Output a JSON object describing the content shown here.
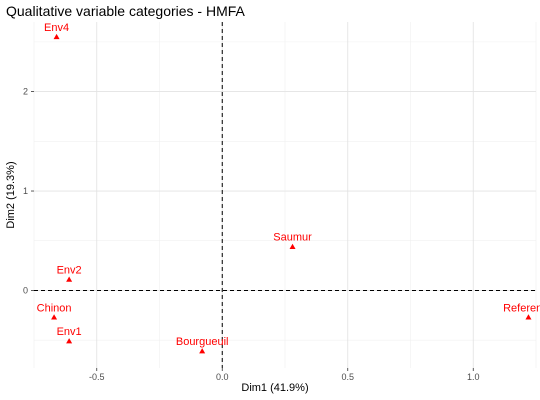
{
  "chart_data": {
    "type": "scatter",
    "title": "Qualitative variable categories - HMFA",
    "xlabel": "Dim1 (41.9%)",
    "ylabel": "Dim2 (19.3%)",
    "xlim": [
      -0.75,
      1.25
    ],
    "ylim": [
      -0.78,
      2.7
    ],
    "x_ticks": [
      -0.5,
      0.0,
      0.5,
      1.0
    ],
    "x_tick_labels": [
      "-0.5",
      "0.0",
      "0.5",
      "1.0"
    ],
    "y_ticks": [
      0,
      1,
      2
    ],
    "y_tick_labels": [
      "0",
      "1",
      "2"
    ],
    "grid": true,
    "reference_lines": {
      "x": 0,
      "y": 0,
      "style": "dashed"
    },
    "point_color": "#ff0000",
    "marker": "triangle",
    "points": [
      {
        "label": "Env4",
        "x": -0.66,
        "y": 2.55
      },
      {
        "label": "Env2",
        "x": -0.61,
        "y": 0.11
      },
      {
        "label": "Chinon",
        "x": -0.67,
        "y": -0.27
      },
      {
        "label": "Env1",
        "x": -0.61,
        "y": -0.51
      },
      {
        "label": "Bourgueuil",
        "x": -0.08,
        "y": -0.61
      },
      {
        "label": "Saumur",
        "x": 0.28,
        "y": 0.44
      },
      {
        "label": "Reference",
        "x": 1.22,
        "y": -0.27
      }
    ]
  }
}
